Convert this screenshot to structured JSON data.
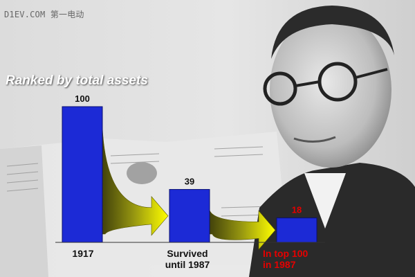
{
  "watermark": "D1EV.COM 第一电动",
  "chart_data": {
    "type": "bar",
    "title": "Ranked by total assets",
    "categories": [
      [
        "1917"
      ],
      [
        "Survived",
        "until 1987"
      ],
      [
        "In top 100",
        "in 1987"
      ]
    ],
    "values": [
      100,
      39,
      18
    ],
    "value_label_colors": [
      "#111111",
      "#111111",
      "#e60000"
    ],
    "bar_color": "#1c2ad6",
    "arrow_color": "#ffff00",
    "ylim": [
      0,
      100
    ]
  }
}
